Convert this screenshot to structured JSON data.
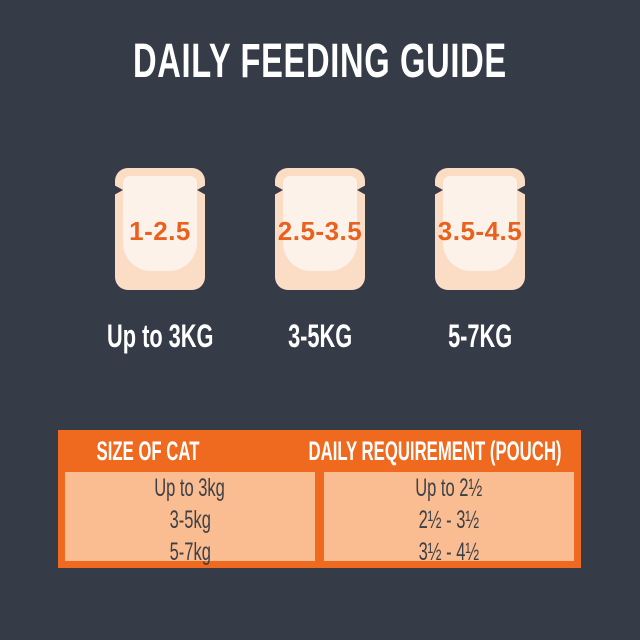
{
  "title": "DAILY FEEDING GUIDE",
  "pouches": [
    {
      "amount": "1-2.5",
      "weight": "Up to 3KG"
    },
    {
      "amount": "2.5-3.5",
      "weight": "3-5KG"
    },
    {
      "amount": "3.5-4.5",
      "weight": "5-7KG"
    }
  ],
  "table": {
    "headers": [
      "SIZE OF CAT",
      "DAILY REQUIREMENT (POUCH)"
    ],
    "rows": [
      {
        "size": "Up to 3kg",
        "requirement": "Up to 2½"
      },
      {
        "size": "3-5kg",
        "requirement": "2½ - 3½"
      },
      {
        "size": "5-7kg",
        "requirement": "3½ - 4½"
      }
    ]
  },
  "colors": {
    "background": "#353B47",
    "accent_orange": "#EF6A1E",
    "number_orange": "#E8611F",
    "pouch_outer": "#FBDCC5",
    "pouch_inner": "#FDF2E9",
    "cell_background": "#FABD92",
    "cell_text": "#3E4047",
    "text_white": "#FFFFFF"
  }
}
